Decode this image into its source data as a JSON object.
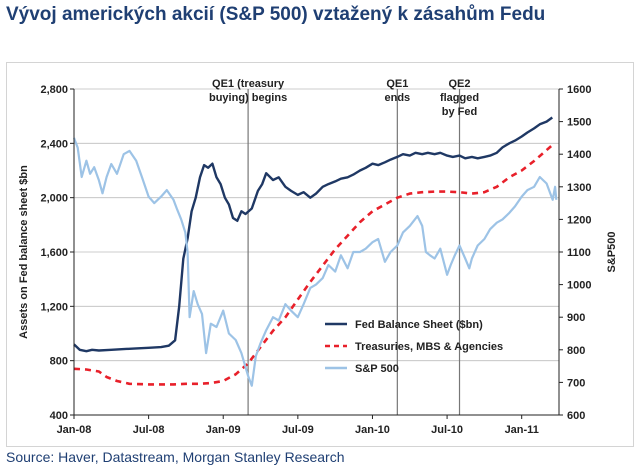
{
  "title": "Vývoj amerických akcií (S&P 500) vztažený k zásahům Fedu",
  "source": "Source: Haver, Datastream, Morgan Stanley Research",
  "chart_data": {
    "type": "line",
    "ylabel_left": "Assets on Fed balance sheet $bn",
    "ylabel_right": "S&P500",
    "x_ticks": [
      "Jan-08",
      "Jul-08",
      "Jan-09",
      "Jul-09",
      "Jan-10",
      "Jul-10",
      "Jan-11"
    ],
    "x_tick_dates": [
      "2008-01",
      "2008-07",
      "2009-01",
      "2009-07",
      "2010-01",
      "2010-07",
      "2011-01"
    ],
    "xlim": [
      "2008-01",
      "2011-04"
    ],
    "ylim_left": [
      400,
      2800
    ],
    "yticks_left": [
      "400",
      "800",
      "1,200",
      "1,600",
      "2,000",
      "2,400",
      "2,800"
    ],
    "ylim_right": [
      600,
      1600
    ],
    "yticks_right": [
      "600",
      "700",
      "800",
      "900",
      "1000",
      "1100",
      "1200",
      "1300",
      "1400",
      "1500",
      "1600"
    ],
    "grid": "horizontal",
    "legend_position": "bottom-right",
    "annotations": [
      {
        "date": "2009-03",
        "lines": [
          "QE1 (treasury",
          "buying) begins"
        ]
      },
      {
        "date": "2010-03",
        "lines": [
          "QE1",
          "ends"
        ]
      },
      {
        "date": "2010-08",
        "lines": [
          "QE2",
          "flagged",
          "by Fed"
        ]
      }
    ],
    "series": [
      {
        "name": "Fed Balance Sheet ($bn)",
        "axis": "left",
        "color": "#1f3864",
        "style": "solid",
        "points": [
          [
            "2008-01-01",
            920
          ],
          [
            "2008-01-15",
            880
          ],
          [
            "2008-02-01",
            870
          ],
          [
            "2008-02-15",
            880
          ],
          [
            "2008-03-01",
            875
          ],
          [
            "2008-04-01",
            880
          ],
          [
            "2008-05-01",
            885
          ],
          [
            "2008-06-01",
            890
          ],
          [
            "2008-07-01",
            895
          ],
          [
            "2008-08-01",
            900
          ],
          [
            "2008-08-20",
            910
          ],
          [
            "2008-09-05",
            950
          ],
          [
            "2008-09-15",
            1200
          ],
          [
            "2008-09-25",
            1550
          ],
          [
            "2008-10-05",
            1700
          ],
          [
            "2008-10-15",
            1900
          ],
          [
            "2008-10-25",
            2000
          ],
          [
            "2008-11-05",
            2150
          ],
          [
            "2008-11-15",
            2240
          ],
          [
            "2008-11-25",
            2220
          ],
          [
            "2008-12-05",
            2250
          ],
          [
            "2008-12-15",
            2150
          ],
          [
            "2008-12-25",
            2100
          ],
          [
            "2009-01-05",
            2000
          ],
          [
            "2009-01-15",
            1950
          ],
          [
            "2009-01-25",
            1850
          ],
          [
            "2009-02-05",
            1830
          ],
          [
            "2009-02-15",
            1900
          ],
          [
            "2009-02-25",
            1880
          ],
          [
            "2009-03-10",
            1920
          ],
          [
            "2009-03-25",
            2050
          ],
          [
            "2009-04-05",
            2100
          ],
          [
            "2009-04-15",
            2180
          ],
          [
            "2009-05-01",
            2130
          ],
          [
            "2009-05-15",
            2150
          ],
          [
            "2009-06-01",
            2080
          ],
          [
            "2009-06-15",
            2050
          ],
          [
            "2009-07-01",
            2020
          ],
          [
            "2009-07-15",
            2040
          ],
          [
            "2009-08-01",
            2000
          ],
          [
            "2009-08-15",
            2030
          ],
          [
            "2009-09-01",
            2080
          ],
          [
            "2009-09-15",
            2100
          ],
          [
            "2009-10-01",
            2120
          ],
          [
            "2009-10-15",
            2140
          ],
          [
            "2009-11-01",
            2150
          ],
          [
            "2009-11-15",
            2170
          ],
          [
            "2009-12-01",
            2200
          ],
          [
            "2009-12-15",
            2220
          ],
          [
            "2010-01-01",
            2250
          ],
          [
            "2010-01-15",
            2240
          ],
          [
            "2010-02-01",
            2260
          ],
          [
            "2010-02-15",
            2280
          ],
          [
            "2010-03-01",
            2300
          ],
          [
            "2010-03-15",
            2320
          ],
          [
            "2010-04-01",
            2310
          ],
          [
            "2010-04-15",
            2330
          ],
          [
            "2010-05-01",
            2320
          ],
          [
            "2010-05-15",
            2330
          ],
          [
            "2010-06-01",
            2320
          ],
          [
            "2010-06-15",
            2330
          ],
          [
            "2010-07-01",
            2310
          ],
          [
            "2010-07-15",
            2300
          ],
          [
            "2010-08-01",
            2310
          ],
          [
            "2010-08-15",
            2290
          ],
          [
            "2010-09-01",
            2300
          ],
          [
            "2010-09-15",
            2290
          ],
          [
            "2010-10-01",
            2300
          ],
          [
            "2010-10-15",
            2310
          ],
          [
            "2010-11-01",
            2330
          ],
          [
            "2010-11-15",
            2370
          ],
          [
            "2010-12-01",
            2400
          ],
          [
            "2010-12-15",
            2420
          ],
          [
            "2011-01-01",
            2450
          ],
          [
            "2011-01-15",
            2480
          ],
          [
            "2011-02-01",
            2510
          ],
          [
            "2011-02-15",
            2540
          ],
          [
            "2011-03-01",
            2560
          ],
          [
            "2011-03-15",
            2590
          ]
        ]
      },
      {
        "name": "Treasuries, MBS & Agencies",
        "axis": "left",
        "color": "#e8202a",
        "style": "dashed",
        "points": [
          [
            "2008-01-01",
            740
          ],
          [
            "2008-02-01",
            735
          ],
          [
            "2008-03-01",
            720
          ],
          [
            "2008-03-20",
            680
          ],
          [
            "2008-04-15",
            650
          ],
          [
            "2008-05-15",
            630
          ],
          [
            "2008-07-01",
            625
          ],
          [
            "2008-09-01",
            625
          ],
          [
            "2008-10-01",
            630
          ],
          [
            "2008-11-01",
            630
          ],
          [
            "2008-12-01",
            635
          ],
          [
            "2009-01-01",
            650
          ],
          [
            "2009-02-01",
            700
          ],
          [
            "2009-03-01",
            780
          ],
          [
            "2009-04-01",
            900
          ],
          [
            "2009-05-01",
            1020
          ],
          [
            "2009-06-01",
            1120
          ],
          [
            "2009-07-01",
            1250
          ],
          [
            "2009-08-01",
            1380
          ],
          [
            "2009-09-01",
            1500
          ],
          [
            "2009-10-01",
            1620
          ],
          [
            "2009-11-01",
            1720
          ],
          [
            "2009-12-01",
            1820
          ],
          [
            "2010-01-01",
            1900
          ],
          [
            "2010-02-01",
            1950
          ],
          [
            "2010-03-01",
            2000
          ],
          [
            "2010-04-01",
            2030
          ],
          [
            "2010-05-01",
            2040
          ],
          [
            "2010-06-01",
            2045
          ],
          [
            "2010-07-01",
            2045
          ],
          [
            "2010-08-01",
            2040
          ],
          [
            "2010-09-01",
            2030
          ],
          [
            "2010-10-01",
            2040
          ],
          [
            "2010-11-01",
            2080
          ],
          [
            "2010-12-01",
            2150
          ],
          [
            "2011-01-01",
            2200
          ],
          [
            "2011-02-01",
            2270
          ],
          [
            "2011-03-01",
            2350
          ],
          [
            "2011-03-20",
            2400
          ]
        ]
      },
      {
        "name": "S&P 500",
        "axis": "right",
        "color": "#9dc3e6",
        "style": "solid",
        "points": [
          [
            "2008-01-01",
            1450
          ],
          [
            "2008-01-10",
            1420
          ],
          [
            "2008-01-20",
            1330
          ],
          [
            "2008-02-01",
            1380
          ],
          [
            "2008-02-10",
            1340
          ],
          [
            "2008-02-20",
            1360
          ],
          [
            "2008-03-01",
            1320
          ],
          [
            "2008-03-10",
            1280
          ],
          [
            "2008-03-20",
            1330
          ],
          [
            "2008-04-01",
            1370
          ],
          [
            "2008-04-15",
            1340
          ],
          [
            "2008-05-01",
            1400
          ],
          [
            "2008-05-15",
            1410
          ],
          [
            "2008-06-01",
            1380
          ],
          [
            "2008-06-15",
            1330
          ],
          [
            "2008-07-01",
            1270
          ],
          [
            "2008-07-15",
            1250
          ],
          [
            "2008-08-01",
            1270
          ],
          [
            "2008-08-15",
            1290
          ],
          [
            "2008-09-01",
            1260
          ],
          [
            "2008-09-10",
            1230
          ],
          [
            "2008-09-20",
            1200
          ],
          [
            "2008-09-30",
            1160
          ],
          [
            "2008-10-05",
            1100
          ],
          [
            "2008-10-10",
            900
          ],
          [
            "2008-10-20",
            980
          ],
          [
            "2008-10-30",
            940
          ],
          [
            "2008-11-10",
            910
          ],
          [
            "2008-11-20",
            790
          ],
          [
            "2008-12-01",
            880
          ],
          [
            "2008-12-15",
            870
          ],
          [
            "2009-01-01",
            920
          ],
          [
            "2009-01-15",
            850
          ],
          [
            "2009-02-01",
            830
          ],
          [
            "2009-02-15",
            790
          ],
          [
            "2009-03-01",
            720
          ],
          [
            "2009-03-10",
            690
          ],
          [
            "2009-03-20",
            780
          ],
          [
            "2009-04-01",
            820
          ],
          [
            "2009-04-15",
            860
          ],
          [
            "2009-05-01",
            900
          ],
          [
            "2009-05-15",
            890
          ],
          [
            "2009-06-01",
            940
          ],
          [
            "2009-06-15",
            920
          ],
          [
            "2009-07-01",
            900
          ],
          [
            "2009-07-15",
            940
          ],
          [
            "2009-08-01",
            990
          ],
          [
            "2009-08-15",
            1000
          ],
          [
            "2009-09-01",
            1020
          ],
          [
            "2009-09-15",
            1060
          ],
          [
            "2009-10-01",
            1040
          ],
          [
            "2009-10-15",
            1090
          ],
          [
            "2009-11-01",
            1050
          ],
          [
            "2009-11-15",
            1100
          ],
          [
            "2009-12-01",
            1100
          ],
          [
            "2009-12-15",
            1110
          ],
          [
            "2010-01-01",
            1130
          ],
          [
            "2010-01-15",
            1140
          ],
          [
            "2010-02-01",
            1070
          ],
          [
            "2010-02-15",
            1100
          ],
          [
            "2010-03-01",
            1120
          ],
          [
            "2010-03-15",
            1160
          ],
          [
            "2010-04-01",
            1180
          ],
          [
            "2010-04-20",
            1210
          ],
          [
            "2010-05-01",
            1180
          ],
          [
            "2010-05-10",
            1100
          ],
          [
            "2010-05-20",
            1090
          ],
          [
            "2010-06-01",
            1080
          ],
          [
            "2010-06-15",
            1110
          ],
          [
            "2010-07-01",
            1030
          ],
          [
            "2010-07-10",
            1060
          ],
          [
            "2010-07-20",
            1090
          ],
          [
            "2010-08-01",
            1120
          ],
          [
            "2010-08-15",
            1080
          ],
          [
            "2010-08-25",
            1050
          ],
          [
            "2010-09-01",
            1080
          ],
          [
            "2010-09-15",
            1120
          ],
          [
            "2010-10-01",
            1140
          ],
          [
            "2010-10-15",
            1170
          ],
          [
            "2010-11-01",
            1190
          ],
          [
            "2010-11-15",
            1200
          ],
          [
            "2010-12-01",
            1220
          ],
          [
            "2010-12-15",
            1240
          ],
          [
            "2011-01-01",
            1270
          ],
          [
            "2011-01-15",
            1290
          ],
          [
            "2011-02-01",
            1300
          ],
          [
            "2011-02-15",
            1330
          ],
          [
            "2011-03-01",
            1310
          ],
          [
            "2011-03-10",
            1280
          ],
          [
            "2011-03-16",
            1260
          ],
          [
            "2011-03-22",
            1300
          ],
          [
            "2011-03-25",
            1260
          ]
        ]
      }
    ]
  }
}
